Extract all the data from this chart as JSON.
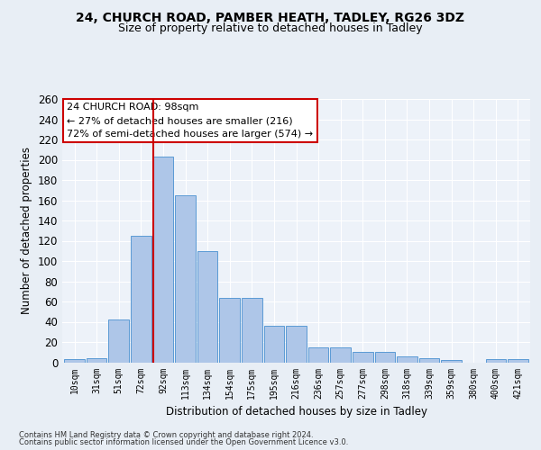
{
  "title1": "24, CHURCH ROAD, PAMBER HEATH, TADLEY, RG26 3DZ",
  "title2": "Size of property relative to detached houses in Tadley",
  "xlabel": "Distribution of detached houses by size in Tadley",
  "ylabel": "Number of detached properties",
  "categories": [
    "10sqm",
    "31sqm",
    "51sqm",
    "72sqm",
    "92sqm",
    "113sqm",
    "134sqm",
    "154sqm",
    "175sqm",
    "195sqm",
    "216sqm",
    "236sqm",
    "257sqm",
    "277sqm",
    "298sqm",
    "318sqm",
    "339sqm",
    "359sqm",
    "380sqm",
    "400sqm",
    "421sqm"
  ],
  "values": [
    3,
    4,
    42,
    125,
    203,
    165,
    110,
    64,
    64,
    36,
    36,
    15,
    15,
    10,
    10,
    6,
    4,
    2,
    0,
    3,
    3
  ],
  "bar_color": "#aec6e8",
  "bar_edge_color": "#5b9bd5",
  "annotation_text": "24 CHURCH ROAD: 98sqm\n← 27% of detached houses are smaller (216)\n72% of semi-detached houses are larger (574) →",
  "annotation_box_color": "#ffffff",
  "annotation_box_edge": "#cc0000",
  "vline_color": "#cc0000",
  "footer1": "Contains HM Land Registry data © Crown copyright and database right 2024.",
  "footer2": "Contains public sector information licensed under the Open Government Licence v3.0.",
  "ylim": [
    0,
    260
  ],
  "yticks": [
    0,
    20,
    40,
    60,
    80,
    100,
    120,
    140,
    160,
    180,
    200,
    220,
    240,
    260
  ],
  "bg_color": "#e8eef5",
  "plot_bg": "#edf2f9",
  "title1_fontsize": 10,
  "title2_fontsize": 9,
  "grid_color": "#ffffff",
  "tick_label_fontsize": 7
}
